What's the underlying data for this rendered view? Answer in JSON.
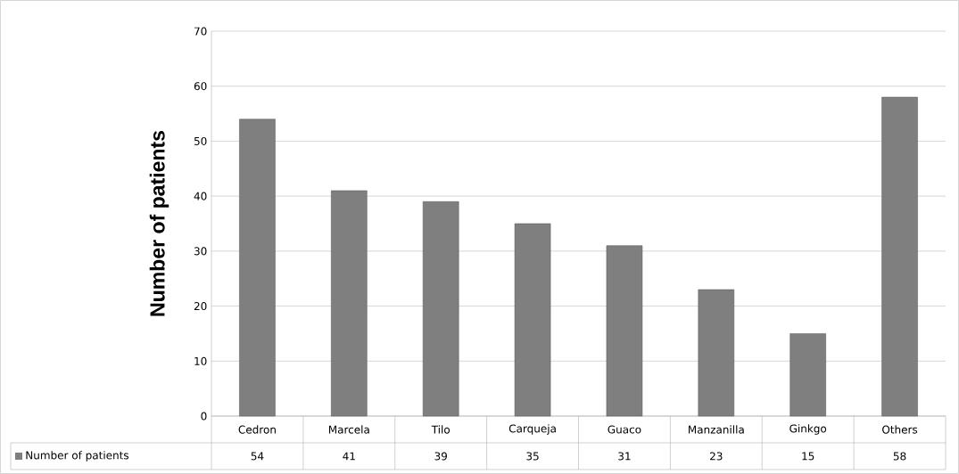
{
  "chart_data": {
    "type": "bar",
    "ylabel": "Number of patients",
    "categories": [
      "Cedron",
      "Marcela",
      "Tilo",
      "Carqueja",
      "Guaco",
      "Manzanilla",
      "Ginkgo",
      "Others"
    ],
    "series": [
      {
        "name": "Number of patients",
        "color": "#7f7f7f",
        "values": [
          54,
          41,
          39,
          35,
          31,
          23,
          15,
          58
        ]
      }
    ],
    "ylim": [
      0,
      70
    ],
    "yticks": [
      0,
      10,
      20,
      30,
      40,
      50,
      60,
      70
    ],
    "grid": "y",
    "legend": "bottom",
    "data_labels": true
  }
}
